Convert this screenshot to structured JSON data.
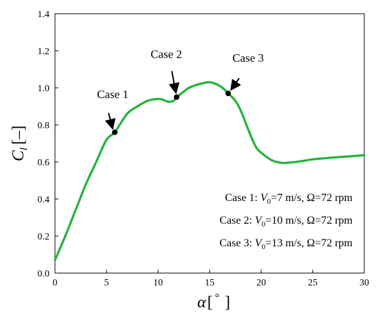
{
  "chart_data": {
    "type": "line",
    "title": "",
    "xlabel": {
      "symbol": "α",
      "unit": "[°]",
      "bracket_open": "[",
      "degree": "°",
      "bracket_close": "]"
    },
    "ylabel": {
      "symbol": "C",
      "subscript": "l",
      "unit": "[–]"
    },
    "xlim": [
      0,
      30
    ],
    "ylim": [
      0,
      1.4
    ],
    "xticks": [
      0,
      5,
      10,
      15,
      20,
      25,
      30
    ],
    "xtick_labels": [
      "0",
      "5",
      "10",
      "15",
      "20",
      "25",
      "30"
    ],
    "yticks": [
      0.0,
      0.2,
      0.4,
      0.6,
      0.8,
      1.0,
      1.2,
      1.4
    ],
    "ytick_labels": [
      "0.0",
      "0.2",
      "0.4",
      "0.6",
      "0.8",
      "1.0",
      "1.2",
      "1.4"
    ],
    "grid": false,
    "line_color": "#22b33a",
    "series": [
      {
        "x": [
          0,
          1,
          2,
          3,
          4,
          5,
          5.8,
          7,
          8,
          9,
          10,
          10.5,
          11,
          11.5,
          11.8,
          12.5,
          13,
          14,
          15,
          16,
          16.8,
          17.5,
          18,
          18.5,
          19,
          19.5,
          20,
          21,
          22,
          23,
          24,
          25,
          26,
          27,
          28,
          29,
          30
        ],
        "y": [
          0.07,
          0.2,
          0.34,
          0.48,
          0.6,
          0.72,
          0.76,
          0.86,
          0.9,
          0.93,
          0.94,
          0.935,
          0.925,
          0.93,
          0.95,
          0.98,
          1.0,
          1.02,
          1.03,
          1.01,
          0.97,
          0.93,
          0.88,
          0.81,
          0.74,
          0.68,
          0.65,
          0.61,
          0.595,
          0.598,
          0.605,
          0.614,
          0.619,
          0.624,
          0.628,
          0.632,
          0.637
        ]
      }
    ],
    "points": [
      {
        "label": "Case 1",
        "x": 5.8,
        "y": 0.76
      },
      {
        "label": "Case 2",
        "x": 11.8,
        "y": 0.95
      },
      {
        "label": "Case 3",
        "x": 16.8,
        "y": 0.97
      }
    ],
    "legend_lines": [
      {
        "prefix": "Case 1: ",
        "var": "V",
        "sub": "0",
        "rest": "=7 m/s, Ω=72 rpm"
      },
      {
        "prefix": "Case 2: ",
        "var": "V",
        "sub": "0",
        "rest": "=10 m/s, Ω=72 rpm"
      },
      {
        "prefix": "Case 3: ",
        "var": "V",
        "sub": "0",
        "rest": "=13 m/s, Ω=72 rpm"
      }
    ]
  }
}
